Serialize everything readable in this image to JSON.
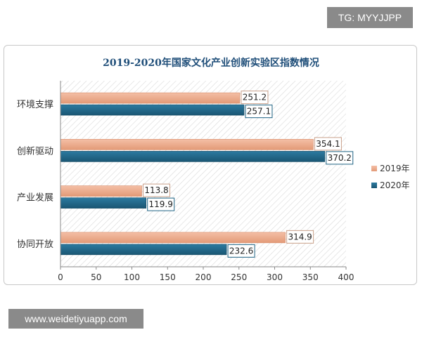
{
  "watermarks": {
    "top": "TG: MYYJJPP",
    "bottom": "www.weidetiyuapp.com"
  },
  "colors": {
    "series_2019": "#e9a383",
    "series_2020": "#1f6384",
    "title": "#1f4e79",
    "label_border": "#1f6384"
  },
  "chart_data": {
    "type": "bar",
    "orientation": "horizontal",
    "title": "2019-2020年国家文化产业创新实验区指数情况",
    "categories": [
      "环境支撑",
      "创新驱动",
      "产业发展",
      "协同开放"
    ],
    "series": [
      {
        "name": "2019年",
        "values": [
          251.2,
          354.1,
          113.8,
          314.9
        ]
      },
      {
        "name": "2020年",
        "values": [
          257.1,
          370.2,
          119.9,
          232.6
        ]
      }
    ],
    "xlim": [
      0,
      400
    ],
    "xticks": [
      "0",
      "50",
      "100",
      "150",
      "200",
      "250",
      "300",
      "350",
      "400"
    ],
    "legend_position": "right",
    "background": "hatched"
  }
}
